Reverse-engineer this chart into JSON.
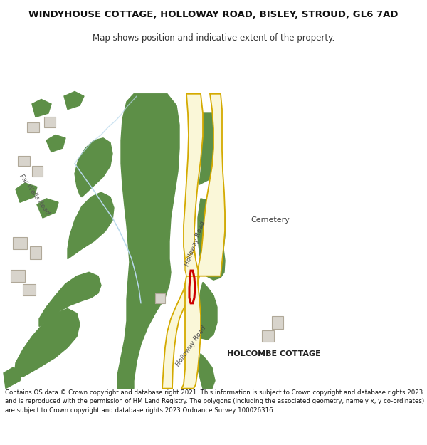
{
  "title": "WINDYHOUSE COTTAGE, HOLLOWAY ROAD, BISLEY, STROUD, GL6 7AD",
  "subtitle": "Map shows position and indicative extent of the property.",
  "footer": "Contains OS data © Crown copyright and database right 2021. This information is subject to Crown copyright and database rights 2023 and is reproduced with the permission of HM Land Registry. The polygons (including the associated geometry, namely x, y co-ordinates) are subject to Crown copyright and database rights 2023 Ordnance Survey 100026316.",
  "bg_color": "#ffffff",
  "map_bg": "#f2f0eb",
  "road_fill": "#faf7d8",
  "road_outline": "#d4aa00",
  "green_fill": "#5d8f47",
  "building_fill": "#d8d4cc",
  "building_outline": "#b0a898",
  "red_color": "#cc0000",
  "water_color": "#b8d8ec",
  "label_dark": "#333333"
}
